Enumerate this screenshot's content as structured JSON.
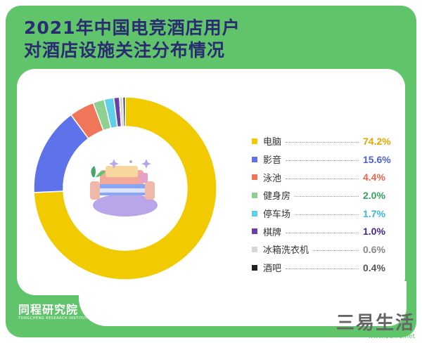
{
  "title": {
    "line1": "2021年中国电竞酒店用户",
    "line2": "对酒店设施关注分布情况"
  },
  "chart_data": {
    "type": "pie",
    "subtype": "donut",
    "categories": [
      "电脑",
      "影音",
      "泳池",
      "健身房",
      "停车场",
      "棋牌",
      "冰箱洗衣机",
      "酒吧"
    ],
    "values": [
      74.2,
      15.6,
      4.4,
      2.0,
      1.7,
      1.0,
      0.6,
      0.4
    ],
    "value_labels": [
      "74.2%",
      "15.6%",
      "4.4%",
      "2.0%",
      "1.7%",
      "1.0%",
      "0.6%",
      "0.4%"
    ],
    "colors": [
      "#f2ca00",
      "#5e72ea",
      "#f0765a",
      "#8dd08f",
      "#5ed0ea",
      "#6b3fa8",
      "#d6d6d6",
      "#222222"
    ],
    "value_colors": [
      "#e0a800",
      "#4a5fd8",
      "#e9674c",
      "#3aa05f",
      "#34b8dc",
      "#3f2a88",
      "#888888",
      "#555555"
    ],
    "legend_position": "right",
    "center_icon": "sofa-illustration-icon"
  },
  "brand": {
    "name": "同程研究院",
    "sub": "TONGCHENG RESEARCH INSTITUTE"
  },
  "watermark": {
    "main": "三易生活",
    "sub": "www.3elife.net"
  },
  "colors": {
    "frame": "#5fc46a",
    "title": "#2b2b72",
    "card": "#ffffff"
  }
}
